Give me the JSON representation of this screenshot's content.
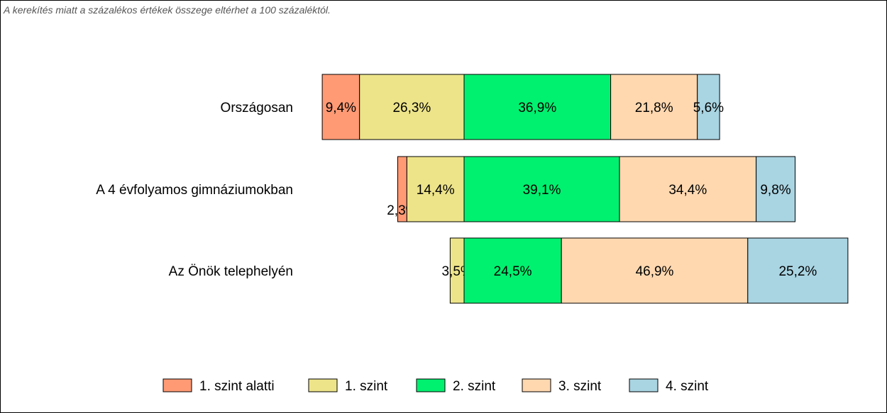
{
  "note": "A kerekítés miatt a  százalékos értékek összege eltérhet a 100 százaléktól.",
  "colors": [
    "#ff9a75",
    "#ede48a",
    "#00f070",
    "#ffd8b0",
    "#a9d4e2"
  ],
  "chart_data": {
    "type": "bar",
    "orientation": "horizontal",
    "stacked": true,
    "alignment": "centered on the 1. szint / 2. szint boundary",
    "categories": [
      "Országosan",
      "A 4 évfolyamos gimnáziumokban",
      "Az Önök telephelyén"
    ],
    "series": [
      {
        "name": "1. szint alatti",
        "values": [
          9.4,
          2.3,
          0
        ],
        "labels": [
          "9,4%",
          "2,3%",
          ""
        ]
      },
      {
        "name": "1. szint",
        "values": [
          26.3,
          14.4,
          3.5
        ],
        "labels": [
          "26,3%",
          "14,4%",
          "3,5%"
        ]
      },
      {
        "name": "2. szint",
        "values": [
          36.9,
          39.1,
          24.5
        ],
        "labels": [
          "36,9%",
          "39,1%",
          "24,5%"
        ]
      },
      {
        "name": "3. szint",
        "values": [
          21.8,
          34.4,
          46.9
        ],
        "labels": [
          "21,8%",
          "34,4%",
          "46,9%"
        ]
      },
      {
        "name": "4. szint",
        "values": [
          5.6,
          9.8,
          25.2
        ],
        "labels": [
          "5,6%",
          "9,8%",
          "25,2%"
        ]
      }
    ],
    "legend_position": "bottom",
    "grid": false
  }
}
